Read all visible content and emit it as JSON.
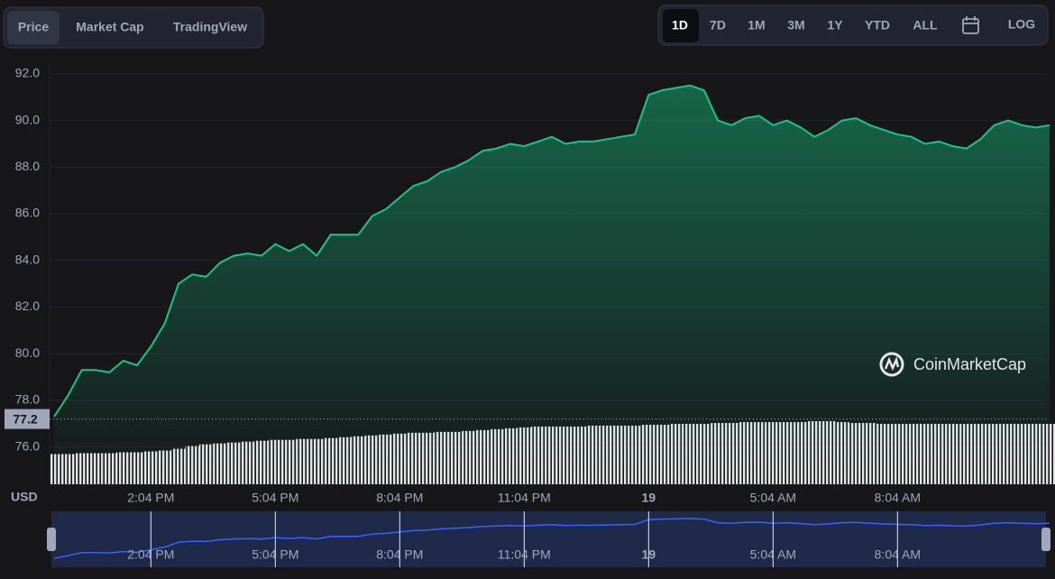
{
  "tabs": [
    "Price",
    "Market Cap",
    "TradingView"
  ],
  "ranges": [
    "1D",
    "7D",
    "1M",
    "3M",
    "1Y",
    "YTD",
    "ALL"
  ],
  "log_button": "LOG",
  "watermark": "CoinMarketCap",
  "chart_data": {
    "type": "area",
    "currency_label": "USD",
    "color": "#16c784",
    "baseline": 77.2,
    "categories": [
      null,
      null,
      null,
      null,
      null,
      null,
      null,
      "2:04 PM",
      null,
      null,
      null,
      null,
      null,
      null,
      null,
      null,
      "5:04 PM",
      null,
      null,
      null,
      null,
      null,
      null,
      null,
      null,
      "8:04 PM",
      null,
      null,
      null,
      null,
      null,
      null,
      null,
      null,
      "11:04 PM",
      null,
      null,
      null,
      null,
      null,
      null,
      null,
      null,
      "19",
      null,
      null,
      null,
      null,
      null,
      null,
      null,
      null,
      "5:04 AM",
      null,
      null,
      null,
      null,
      null,
      null,
      null,
      null,
      "8:04 AM",
      null,
      null,
      null,
      null,
      null,
      null,
      null,
      null,
      null,
      null,
      null
    ],
    "values": [
      77.3,
      78.2,
      79.3,
      79.3,
      79.2,
      79.7,
      79.5,
      80.3,
      81.3,
      83.0,
      83.4,
      83.3,
      83.9,
      84.2,
      84.3,
      84.2,
      84.7,
      84.4,
      84.7,
      84.2,
      85.1,
      85.1,
      85.1,
      85.9,
      86.2,
      86.7,
      87.2,
      87.4,
      87.8,
      88.0,
      88.3,
      88.7,
      88.8,
      89.0,
      88.9,
      89.1,
      89.3,
      89.0,
      89.1,
      89.1,
      89.2,
      89.3,
      89.4,
      91.1,
      91.3,
      91.4,
      91.5,
      91.3,
      90.0,
      89.8,
      90.1,
      90.2,
      89.8,
      90.0,
      89.7,
      89.3,
      89.6,
      90.0,
      90.1,
      89.8,
      89.6,
      89.4,
      89.3,
      89.0,
      89.1,
      88.9,
      88.8,
      89.2,
      89.8,
      90.0,
      89.8,
      89.7,
      89.8
    ],
    "volume": [
      34,
      34,
      35,
      35,
      35,
      36,
      36,
      37,
      38,
      40,
      43,
      45,
      46,
      47,
      48,
      49,
      50,
      50,
      51,
      51,
      52,
      53,
      54,
      55,
      56,
      57,
      58,
      58,
      59,
      59,
      60,
      61,
      62,
      63,
      64,
      65,
      65,
      65,
      65,
      66,
      66,
      66,
      66,
      67,
      67,
      68,
      68,
      68,
      69,
      69,
      70,
      70,
      70,
      70,
      70,
      71,
      71,
      70,
      69,
      69,
      68,
      68,
      68,
      68,
      68,
      68,
      68,
      68,
      68,
      68,
      68,
      68,
      68
    ],
    "ylim": [
      74.4,
      92.46
    ],
    "yticks": [
      {
        "value": 76,
        "label": "76.0"
      },
      {
        "value": 78,
        "label": "78.0"
      },
      {
        "value": 80,
        "label": "80.0"
      },
      {
        "value": 82,
        "label": "82.0"
      },
      {
        "value": 84,
        "label": "84.0"
      },
      {
        "value": 86,
        "label": "86.0"
      },
      {
        "value": 88,
        "label": "88.0"
      },
      {
        "value": 90,
        "label": "90.0"
      },
      {
        "value": 92,
        "label": "92.0"
      }
    ],
    "grid": true
  }
}
